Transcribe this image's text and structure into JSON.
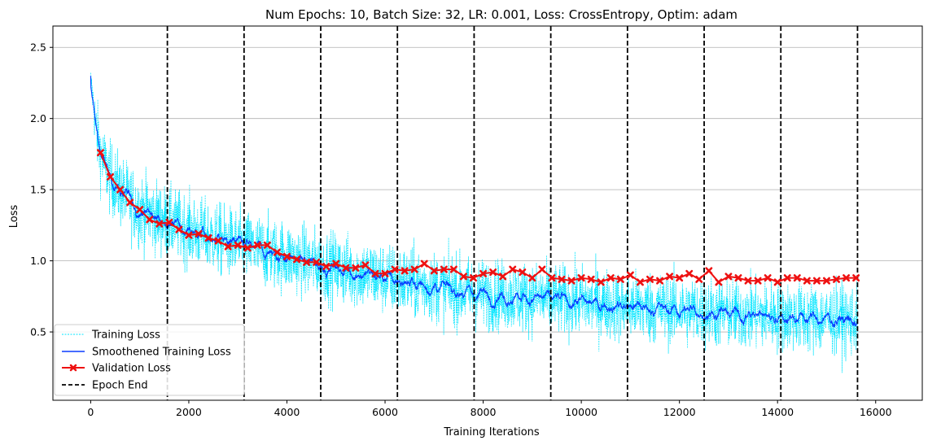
{
  "chart_data": {
    "type": "line",
    "title": "Num Epochs: 10, Batch Size: 32, LR: 0.001, Loss: CrossEntropy, Optim: adam",
    "xlabel": "Training Iterations",
    "ylabel": "Loss",
    "xlim": [
      -770,
      16950
    ],
    "ylim": [
      0.02,
      2.65
    ],
    "xticks": [
      0,
      2000,
      4000,
      6000,
      8000,
      10000,
      12000,
      14000,
      16000
    ],
    "xtick_labels": [
      "0",
      "2000",
      "4000",
      "6000",
      "8000",
      "10000",
      "12000",
      "14000",
      "16000"
    ],
    "yticks": [
      0.5,
      1.0,
      1.5,
      2.0,
      2.5
    ],
    "ytick_labels": [
      "0.5",
      "1.0",
      "1.5",
      "2.0",
      "2.5"
    ],
    "grid": "horizontal",
    "legend_position": "lower-left",
    "legend": [
      "Training Loss",
      "Smoothened Training Loss",
      "Validation Loss",
      "Epoch End"
    ],
    "colors": {
      "training": "#00e5ff",
      "smoothed": "#0a3cff",
      "validation": "#ee1111",
      "epoch_end": "#000000",
      "grid": "#b0b0b0"
    },
    "epoch_end": [
      1563,
      3126,
      4689,
      6252,
      7815,
      9378,
      10941,
      12504,
      14067,
      15630
    ],
    "training_summary": {
      "x": [
        0,
        100,
        200,
        400,
        700,
        1000,
        1563,
        2500,
        3126,
        4689,
        6252,
        7815,
        9378,
        10941,
        12504,
        14067,
        15630
      ],
      "mean": [
        2.3,
        1.95,
        1.75,
        1.58,
        1.45,
        1.36,
        1.27,
        1.16,
        1.1,
        0.97,
        0.86,
        0.77,
        0.73,
        0.68,
        0.64,
        0.61,
        0.58
      ],
      "spread": [
        0.05,
        0.28,
        0.3,
        0.3,
        0.31,
        0.32,
        0.3,
        0.3,
        0.3,
        0.3,
        0.3,
        0.3,
        0.3,
        0.3,
        0.3,
        0.3,
        0.3
      ]
    },
    "series": [
      {
        "name": "Validation Loss",
        "x": [
          200,
          400,
          600,
          800,
          1000,
          1200,
          1400,
          1600,
          1800,
          2000,
          2200,
          2400,
          2600,
          2800,
          3000,
          3200,
          3400,
          3600,
          3800,
          4000,
          4200,
          4400,
          4600,
          4800,
          5000,
          5200,
          5400,
          5600,
          5800,
          6000,
          6200,
          6400,
          6600,
          6800,
          7000,
          7200,
          7400,
          7600,
          7800,
          8000,
          8200,
          8400,
          8600,
          8800,
          9000,
          9200,
          9400,
          9600,
          9800,
          10000,
          10200,
          10400,
          10600,
          10800,
          11000,
          11200,
          11400,
          11600,
          11800,
          12000,
          12200,
          12400,
          12600,
          12800,
          13000,
          13200,
          13400,
          13600,
          13800,
          14000,
          14200,
          14400,
          14600,
          14800,
          15000,
          15200,
          15400,
          15600
        ],
        "y": [
          1.76,
          1.59,
          1.5,
          1.41,
          1.36,
          1.29,
          1.26,
          1.27,
          1.22,
          1.18,
          1.19,
          1.16,
          1.14,
          1.1,
          1.11,
          1.09,
          1.11,
          1.11,
          1.06,
          1.03,
          1.01,
          0.99,
          0.99,
          0.96,
          0.98,
          0.95,
          0.95,
          0.97,
          0.91,
          0.91,
          0.94,
          0.93,
          0.94,
          0.98,
          0.93,
          0.94,
          0.94,
          0.89,
          0.88,
          0.91,
          0.92,
          0.89,
          0.94,
          0.92,
          0.88,
          0.94,
          0.88,
          0.87,
          0.86,
          0.88,
          0.87,
          0.85,
          0.88,
          0.87,
          0.9,
          0.85,
          0.87,
          0.86,
          0.89,
          0.88,
          0.91,
          0.87,
          0.93,
          0.85,
          0.89,
          0.88,
          0.86,
          0.86,
          0.88,
          0.85,
          0.88,
          0.88,
          0.86,
          0.86,
          0.86,
          0.87,
          0.88,
          0.88
        ]
      }
    ]
  }
}
